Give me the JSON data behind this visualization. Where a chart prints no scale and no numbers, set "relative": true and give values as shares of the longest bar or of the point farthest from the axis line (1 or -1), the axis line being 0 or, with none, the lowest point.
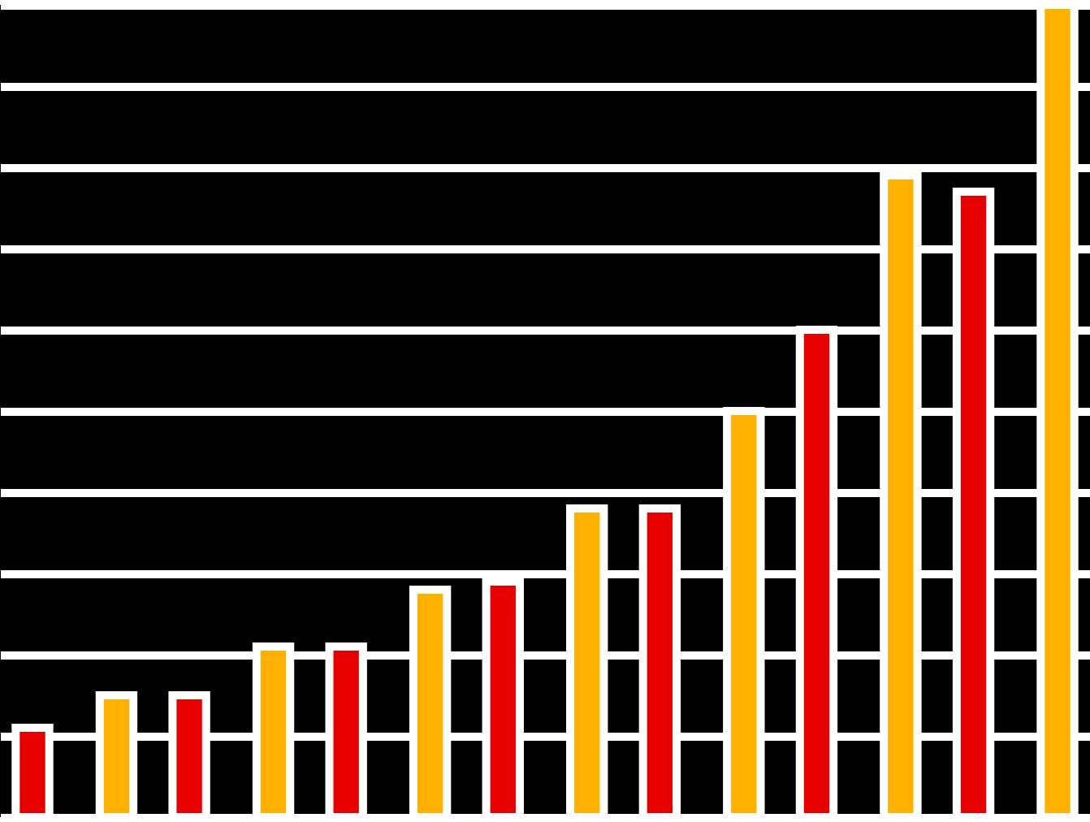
{
  "chart_data": {
    "type": "bar",
    "relative": true,
    "grid": "y",
    "categories": [
      null,
      null,
      null,
      null,
      null,
      null,
      null
    ],
    "series": [
      {
        "color": "#e60000",
        "values": [
          0.11,
          0.15,
          0.21,
          0.29,
          0.38,
          0.6,
          0.77
        ]
      },
      {
        "color": "#ffb000",
        "values": [
          0.15,
          0.21,
          0.28,
          0.38,
          0.5,
          0.79,
          1.0
        ]
      }
    ]
  }
}
